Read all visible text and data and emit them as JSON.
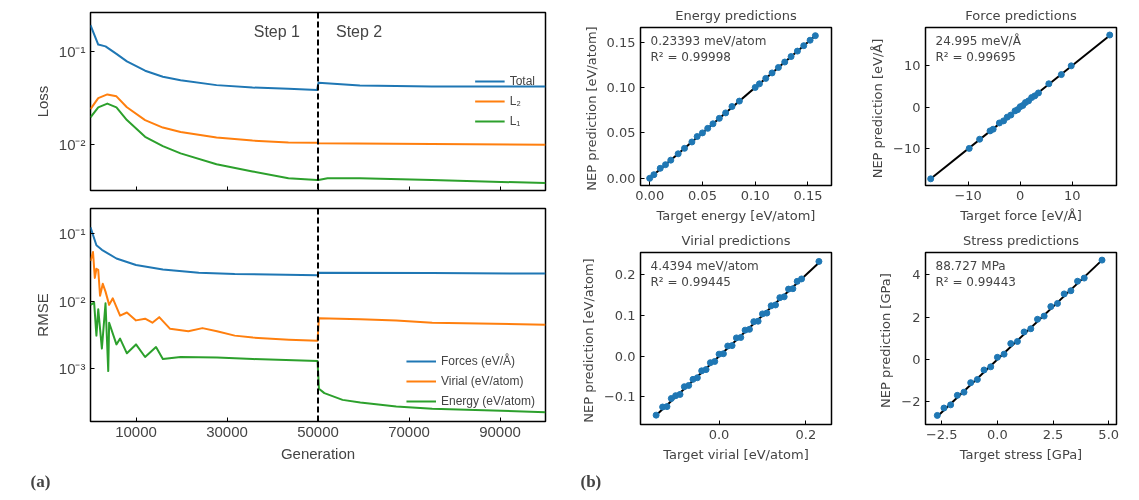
{
  "chart_data": [
    {
      "type": "line",
      "ylabel": "Loss",
      "log": true,
      "xlim": [
        0,
        100000
      ],
      "ylim": [
        0.00325,
        0.26
      ],
      "xticks": [
        10000,
        30000,
        50000,
        70000,
        90000
      ],
      "yticks": [
        {
          "value": 0.1,
          "label": "10⁻¹"
        },
        {
          "value": 0.01,
          "label": "10⁻²"
        }
      ],
      "tick_labels": "y",
      "legend": "right",
      "series": [
        {
          "name": "Total",
          "color": "#1f77b4",
          "x": [
            0,
            1700,
            3300,
            5700,
            8000,
            12000,
            15900,
            19800,
            27700,
            35600,
            43500,
            49800,
            50100,
            59200,
            75000,
            100000
          ],
          "values": [
            0.19,
            0.118,
            0.113,
            0.094,
            0.078,
            0.062,
            0.0535,
            0.049,
            0.0435,
            0.041,
            0.0397,
            0.0386,
            0.046,
            0.043,
            0.042,
            0.042
          ]
        },
        {
          "name": "L₂",
          "color": "#ff7f0e",
          "x": [
            0,
            1700,
            3700,
            5700,
            8000,
            12000,
            15900,
            19800,
            27700,
            35600,
            43500,
            49800,
            50100,
            75000,
            100000
          ],
          "values": [
            0.0241,
            0.0316,
            0.0346,
            0.033,
            0.0252,
            0.0184,
            0.0153,
            0.0137,
            0.012,
            0.0111,
            0.0106,
            0.0105,
            0.0104,
            0.0102,
            0.01
          ]
        },
        {
          "name": "L₁",
          "color": "#2ca02c",
          "x": [
            0,
            1700,
            3700,
            5700,
            8000,
            12000,
            15900,
            19800,
            27700,
            35600,
            43500,
            49800,
            50100,
            52100,
            59200,
            75000,
            100000
          ],
          "values": [
            0.0197,
            0.0252,
            0.0276,
            0.0252,
            0.0184,
            0.0122,
            0.0097,
            0.0081,
            0.0062,
            0.0052,
            0.0044,
            0.0042,
            0.0042,
            0.0044,
            0.0044,
            0.0042,
            0.0039
          ]
        }
      ],
      "ref_lines": [
        {
          "axis": "x",
          "value": 50000,
          "color": "#000000",
          "line_style": "dashed"
        }
      ],
      "annotations": [
        "Step 1",
        "Step 2"
      ]
    },
    {
      "type": "line",
      "xlabel": "Generation",
      "ylabel": "RMSE",
      "log": true,
      "xlim": [
        0,
        100000
      ],
      "ylim": [
        0.000168,
        0.232
      ],
      "xticks": [
        10000,
        30000,
        50000,
        70000,
        90000
      ],
      "yticks": [
        {
          "value": 0.1,
          "label": "10⁻¹"
        },
        {
          "value": 0.01,
          "label": "10⁻²"
        },
        {
          "value": 0.001,
          "label": "10⁻³"
        }
      ],
      "legend": "bottom right",
      "series": [
        {
          "name": "Forces (eV/Å)",
          "color": "#1f77b4",
          "x": [
            0,
            1300,
            2500,
            5700,
            10000,
            15900,
            23800,
            31700,
            49900,
            50200,
            75000,
            100000
          ],
          "values": [
            0.122,
            0.0667,
            0.057,
            0.0425,
            0.034,
            0.0292,
            0.0263,
            0.0251,
            0.024,
            0.0263,
            0.0259,
            0.0255
          ]
        },
        {
          "name": "Virial (eV/atom)",
          "color": "#ff7f0e",
          "x": [
            0,
            550,
            950,
            1300,
            1700,
            2100,
            2700,
            3300,
            4100,
            4900,
            6500,
            8000,
            10000,
            12000,
            13600,
            15100,
            17500,
            21500,
            24600,
            27800,
            31700,
            35700,
            43600,
            49900,
            50200,
            59300,
            67200,
            75100,
            100000
          ],
          "values": [
            0.039,
            0.053,
            0.022,
            0.03,
            0.029,
            0.012,
            0.018,
            0.0138,
            0.0088,
            0.011,
            0.0061,
            0.0068,
            0.0052,
            0.0055,
            0.0048,
            0.0058,
            0.0039,
            0.0036,
            0.004,
            0.0036,
            0.0031,
            0.0029,
            0.0027,
            0.0026,
            0.0056,
            0.0054,
            0.0052,
            0.0048,
            0.0045
          ]
        },
        {
          "name": "Energy (eV/atom)",
          "color": "#2ca02c",
          "x": [
            0,
            800,
            1300,
            1700,
            2500,
            3300,
            3900,
            4100,
            5700,
            6500,
            8000,
            10000,
            12000,
            14400,
            15900,
            19800,
            27800,
            35700,
            49900,
            50200,
            51400,
            55400,
            59300,
            67200,
            75100,
            100000
          ],
          "values": [
            0.0088,
            0.0095,
            0.0031,
            0.0076,
            0.002,
            0.0093,
            0.00093,
            0.0048,
            0.0023,
            0.0028,
            0.0017,
            0.0023,
            0.0015,
            0.0021,
            0.0014,
            0.0015,
            0.00147,
            0.0014,
            0.00131,
            0.00051,
            0.00044,
            0.00035,
            0.00032,
            0.00028,
            0.00026,
            0.00023
          ]
        }
      ],
      "ref_lines": [
        {
          "axis": "x",
          "value": 50000,
          "color": "#000000",
          "line_style": "dashed"
        }
      ],
      "annotations": [
        "(a)"
      ]
    },
    {
      "type": "scatter",
      "title": "Energy predictions",
      "xlabel": "Target energy [eV/atom]",
      "ylabel": "NEP prediction  [eV/atom]",
      "xlim": [
        -0.0087,
        0.1723
      ],
      "ylim": [
        -0.0079,
        0.166
      ],
      "xticks": [
        {
          "value": 0,
          "label": "0.00"
        },
        {
          "value": 0.05,
          "label": "0.05"
        },
        {
          "value": 0.1,
          "label": "0.10"
        },
        {
          "value": 0.15,
          "label": "0.15"
        }
      ],
      "yticks": [
        {
          "value": 0,
          "label": "0.00"
        },
        {
          "value": 0.05,
          "label": "0.05"
        },
        {
          "value": 0.1,
          "label": "0.10"
        },
        {
          "value": 0.15,
          "label": "0.15"
        }
      ],
      "series": [
        {
          "color": "#1f77b4",
          "marker": "circle",
          "x": [
            0,
            0.004,
            0.01,
            0.015,
            0.02,
            0.027,
            0.033,
            0.04,
            0.045,
            0.05,
            0.055,
            0.06,
            0.066,
            0.072,
            0.078,
            0.085,
            0.1,
            0.104,
            0.11,
            0.116,
            0.122,
            0.128,
            0.134,
            0.14,
            0.146,
            0.152,
            0.157
          ],
          "values": [
            0,
            0.004,
            0.011,
            0.015,
            0.02,
            0.027,
            0.033,
            0.04,
            0.046,
            0.05,
            0.055,
            0.06,
            0.066,
            0.072,
            0.079,
            0.085,
            0.1,
            0.104,
            0.11,
            0.116,
            0.122,
            0.128,
            0.134,
            0.14,
            0.146,
            0.152,
            0.157
          ]
        },
        {
          "type": "line",
          "color": "#000000",
          "x": [
            0,
            0.157
          ],
          "values": [
            0,
            0.157
          ]
        }
      ],
      "annotations": [
        "0.23393 meV/atom",
        "R² =  0.99998"
      ]
    },
    {
      "type": "scatter",
      "title": "Force predictions",
      "xlabel": "Target force [eV/Å]",
      "ylabel": "NEP prediction  [eV/Å]",
      "xlim": [
        -18.2,
        18.5
      ],
      "ylim": [
        -18.8,
        19.1
      ],
      "xticks": [
        {
          "value": -10,
          "label": "−10"
        },
        0,
        10
      ],
      "yticks": [
        {
          "value": -10,
          "label": "−10"
        },
        0,
        10
      ],
      "series": [
        {
          "color": "#1f77b4",
          "marker": "circle",
          "x": [
            -17.2,
            -9.8,
            -7.8,
            -5.8,
            -5.2,
            -4,
            -3.2,
            -2.5,
            -1.8,
            -1,
            -0.5,
            0,
            0.5,
            1,
            1.6,
            2.2,
            2.8,
            3.5,
            5.5,
            7.9,
            9.8,
            17.2
          ],
          "values": [
            -17.2,
            -9.9,
            -7.7,
            -5.7,
            -5.3,
            -3.8,
            -3.3,
            -2.4,
            -1.9,
            -0.9,
            -0.6,
            0.1,
            0.4,
            1.1,
            1.5,
            2.3,
            2.7,
            3.4,
            5.6,
            7.8,
            9.9,
            17.3
          ]
        },
        {
          "type": "line",
          "color": "#000000",
          "x": [
            -17.2,
            17.2
          ],
          "values": [
            -17.2,
            17.2
          ]
        }
      ],
      "annotations": [
        "24.995 meV/Å",
        "R² =  0.99695"
      ]
    },
    {
      "type": "scatter",
      "title": "Virial predictions",
      "xlabel": "Target virial [eV/atom]",
      "ylabel": "NEP prediction  [eV/atom]",
      "xlim": [
        -0.181,
        0.259
      ],
      "ylim": [
        -0.168,
        0.255
      ],
      "xticks": [
        {
          "value": 0,
          "label": "0.0"
        },
        {
          "value": 0.2,
          "label": "0.2"
        }
      ],
      "yticks": [
        {
          "value": -0.1,
          "label": "−0.1"
        },
        {
          "value": 0,
          "label": "0.0"
        },
        {
          "value": 0.1,
          "label": "0.1"
        },
        {
          "value": 0.2,
          "label": "0.2"
        }
      ],
      "series": [
        {
          "color": "#1f77b4",
          "marker": "circle",
          "x": [
            -0.145,
            -0.13,
            -0.12,
            -0.11,
            -0.1,
            -0.09,
            -0.08,
            -0.07,
            -0.06,
            -0.05,
            -0.04,
            -0.03,
            -0.02,
            -0.01,
            0,
            0.01,
            0.02,
            0.03,
            0.04,
            0.05,
            0.06,
            0.07,
            0.08,
            0.09,
            0.1,
            0.11,
            0.12,
            0.13,
            0.14,
            0.15,
            0.16,
            0.17,
            0.18,
            0.19,
            0.23
          ],
          "values": [
            -0.145,
            -0.125,
            -0.124,
            -0.104,
            -0.097,
            -0.094,
            -0.075,
            -0.072,
            -0.057,
            -0.053,
            -0.036,
            -0.033,
            -0.016,
            -0.013,
            0.005,
            0.006,
            0.025,
            0.026,
            0.045,
            0.046,
            0.064,
            0.066,
            0.085,
            0.086,
            0.104,
            0.106,
            0.124,
            0.126,
            0.144,
            0.146,
            0.165,
            0.166,
            0.184,
            0.19,
            0.233
          ]
        },
        {
          "type": "line",
          "color": "#000000",
          "x": [
            -0.145,
            0.23
          ],
          "values": [
            -0.145,
            0.23
          ]
        }
      ],
      "annotations": [
        "4.4394 meV/atom",
        "R² =  0.99445",
        "(b)"
      ]
    },
    {
      "type": "scatter",
      "title": "Stress predictions",
      "xlabel": "Target stress [GPa]",
      "ylabel": "NEP prediction  [GPa]",
      "xlim": [
        -3.23,
        5.35
      ],
      "ylim": [
        -3.08,
        5.06
      ],
      "xticks": [
        {
          "value": -2.5,
          "label": "−2.5"
        },
        {
          "value": 0,
          "label": "0.0"
        },
        {
          "value": 2.5,
          "label": "2.5"
        },
        {
          "value": 5,
          "label": "5.0"
        }
      ],
      "yticks": [
        {
          "value": -2,
          "label": "−2"
        },
        0,
        2,
        4
      ],
      "series": [
        {
          "color": "#1f77b4",
          "marker": "circle",
          "x": [
            -2.7,
            -2.4,
            -2.1,
            -1.8,
            -1.5,
            -1.2,
            -0.9,
            -0.6,
            -0.3,
            0,
            0.3,
            0.6,
            0.9,
            1.2,
            1.5,
            1.8,
            2.1,
            2.4,
            2.7,
            3,
            3.3,
            3.6,
            3.9,
            4.7
          ],
          "values": [
            -2.65,
            -2.3,
            -2.15,
            -1.7,
            -1.55,
            -1.1,
            -0.95,
            -0.5,
            -0.35,
            0.1,
            0.25,
            0.75,
            0.85,
            1.3,
            1.45,
            1.9,
            2.05,
            2.5,
            2.65,
            3.1,
            3.25,
            3.7,
            3.85,
            4.7
          ]
        },
        {
          "type": "line",
          "color": "#000000",
          "x": [
            -2.7,
            4.7
          ],
          "values": [
            -2.7,
            4.7
          ]
        }
      ],
      "annotations": [
        "88.727 MPa",
        "R² =  0.99443"
      ]
    }
  ]
}
